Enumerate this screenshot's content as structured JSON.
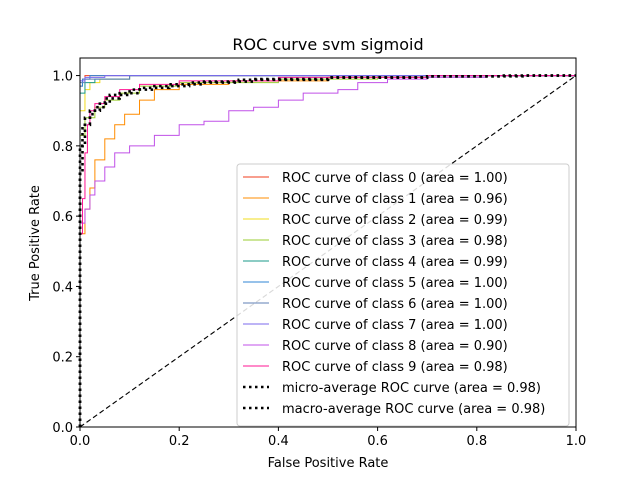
{
  "chart_data": {
    "type": "line",
    "title": "ROC curve svm sigmoid",
    "xlabel": "False Positive Rate",
    "ylabel": "True Positive Rate",
    "xlim": [
      0.0,
      1.0
    ],
    "ylim": [
      0.0,
      1.05
    ],
    "xticks": [
      "0.0",
      "0.2",
      "0.4",
      "0.6",
      "0.8",
      "1.0"
    ],
    "yticks": [
      "0.0",
      "0.2",
      "0.4",
      "0.6",
      "0.8",
      "1.0"
    ],
    "legend_position": "lower-right",
    "grid": false,
    "series": [
      {
        "name": "ROC curve of class 0 (area = 1.00)",
        "color": "#f03c1e",
        "dash": "solid",
        "points": [
          [
            0,
            0
          ],
          [
            0,
            0.9
          ],
          [
            0.005,
            0.97
          ],
          [
            0.01,
            0.99
          ],
          [
            0.02,
            1.0
          ],
          [
            1,
            1
          ]
        ]
      },
      {
        "name": "ROC curve of class 1 (area = 0.96)",
        "color": "#ff8c00",
        "dash": "solid",
        "points": [
          [
            0,
            0
          ],
          [
            0,
            0.42
          ],
          [
            0.01,
            0.55
          ],
          [
            0.02,
            0.62
          ],
          [
            0.03,
            0.68
          ],
          [
            0.05,
            0.76
          ],
          [
            0.07,
            0.82
          ],
          [
            0.09,
            0.86
          ],
          [
            0.12,
            0.89
          ],
          [
            0.15,
            0.93
          ],
          [
            0.2,
            0.96
          ],
          [
            0.3,
            0.975
          ],
          [
            0.5,
            0.985
          ],
          [
            0.7,
            0.995
          ],
          [
            1,
            1
          ]
        ]
      },
      {
        "name": "ROC curve of class 2 (area = 0.99)",
        "color": "#f2dc1e",
        "dash": "solid",
        "points": [
          [
            0,
            0
          ],
          [
            0,
            0.8
          ],
          [
            0.01,
            0.9
          ],
          [
            0.02,
            0.96
          ],
          [
            0.04,
            0.98
          ],
          [
            0.1,
            0.99
          ],
          [
            0.2,
            1.0
          ],
          [
            1,
            1
          ]
        ]
      },
      {
        "name": "ROC curve of class 3 (area = 0.98)",
        "color": "#9acd32",
        "dash": "solid",
        "points": [
          [
            0,
            0
          ],
          [
            0,
            0.72
          ],
          [
            0.01,
            0.83
          ],
          [
            0.03,
            0.88
          ],
          [
            0.05,
            0.91
          ],
          [
            0.08,
            0.93
          ],
          [
            0.12,
            0.95
          ],
          [
            0.2,
            0.97
          ],
          [
            0.4,
            0.98
          ],
          [
            0.6,
            0.99
          ],
          [
            1,
            1
          ]
        ]
      },
      {
        "name": "ROC curve of class 4 (area = 0.99)",
        "color": "#1a9a8a",
        "dash": "solid",
        "points": [
          [
            0,
            0
          ],
          [
            0,
            0.88
          ],
          [
            0.01,
            0.95
          ],
          [
            0.03,
            0.98
          ],
          [
            0.1,
            0.99
          ],
          [
            0.3,
            1.0
          ],
          [
            1,
            1
          ]
        ]
      },
      {
        "name": "ROC curve of class 5 (area = 1.00)",
        "color": "#2f86d6",
        "dash": "solid",
        "points": [
          [
            0,
            0
          ],
          [
            0,
            0.93
          ],
          [
            0.005,
            0.97
          ],
          [
            0.02,
            0.99
          ],
          [
            0.05,
            1.0
          ],
          [
            1,
            1
          ]
        ]
      },
      {
        "name": "ROC curve of class 6 (area = 1.00)",
        "color": "#5f7fb5",
        "dash": "solid",
        "points": [
          [
            0,
            0
          ],
          [
            0,
            0.95
          ],
          [
            0.01,
            0.98
          ],
          [
            0.1,
            0.99
          ],
          [
            0.2,
            1.0
          ],
          [
            1,
            1
          ]
        ]
      },
      {
        "name": "ROC curve of class 7 (area = 1.00)",
        "color": "#7b68ee",
        "dash": "solid",
        "points": [
          [
            0,
            0
          ],
          [
            0,
            0.96
          ],
          [
            0.01,
            0.985
          ],
          [
            0.05,
            0.995
          ],
          [
            0.2,
            1.0
          ],
          [
            1,
            1
          ]
        ]
      },
      {
        "name": "ROC curve of class 8 (area = 0.90)",
        "color": "#c050e8",
        "dash": "solid",
        "points": [
          [
            0,
            0
          ],
          [
            0,
            0.5
          ],
          [
            0.01,
            0.58
          ],
          [
            0.02,
            0.62
          ],
          [
            0.03,
            0.66
          ],
          [
            0.05,
            0.7
          ],
          [
            0.07,
            0.74
          ],
          [
            0.1,
            0.78
          ],
          [
            0.15,
            0.8
          ],
          [
            0.2,
            0.83
          ],
          [
            0.25,
            0.86
          ],
          [
            0.3,
            0.87
          ],
          [
            0.35,
            0.9
          ],
          [
            0.4,
            0.91
          ],
          [
            0.45,
            0.93
          ],
          [
            0.52,
            0.95
          ],
          [
            0.56,
            0.96
          ],
          [
            0.62,
            0.98
          ],
          [
            0.7,
            0.99
          ],
          [
            0.82,
            0.995
          ],
          [
            0.83,
            1.0
          ],
          [
            1,
            1
          ]
        ]
      },
      {
        "name": "ROC curve of class 9 (area = 0.98)",
        "color": "#ff1493",
        "dash": "solid",
        "points": [
          [
            0,
            0
          ],
          [
            0,
            0.35
          ],
          [
            0.005,
            0.55
          ],
          [
            0.01,
            0.65
          ],
          [
            0.015,
            0.78
          ],
          [
            0.02,
            0.86
          ],
          [
            0.03,
            0.9
          ],
          [
            0.05,
            0.92
          ],
          [
            0.08,
            0.94
          ],
          [
            0.12,
            0.96
          ],
          [
            0.2,
            0.975
          ],
          [
            0.4,
            0.985
          ],
          [
            0.7,
            0.995
          ],
          [
            1,
            1
          ]
        ]
      },
      {
        "name": "micro-average ROC curve (area = 0.98)",
        "color": "#000000",
        "dash": "dotted-bold",
        "points": [
          [
            0,
            0
          ],
          [
            0,
            0.6
          ],
          [
            0.005,
            0.72
          ],
          [
            0.01,
            0.8
          ],
          [
            0.02,
            0.86
          ],
          [
            0.03,
            0.89
          ],
          [
            0.05,
            0.91
          ],
          [
            0.08,
            0.935
          ],
          [
            0.12,
            0.95
          ],
          [
            0.18,
            0.965
          ],
          [
            0.25,
            0.975
          ],
          [
            0.35,
            0.983
          ],
          [
            0.5,
            0.99
          ],
          [
            0.7,
            0.995
          ],
          [
            0.85,
            0.998
          ],
          [
            1,
            1
          ]
        ]
      },
      {
        "name": "macro-average ROC curve (area = 0.98)",
        "color": "#000000",
        "dash": "dotted-bold",
        "points": [
          [
            0,
            0
          ],
          [
            0,
            0.7
          ],
          [
            0.005,
            0.8
          ],
          [
            0.01,
            0.85
          ],
          [
            0.02,
            0.88
          ],
          [
            0.04,
            0.9
          ],
          [
            0.06,
            0.92
          ],
          [
            0.1,
            0.945
          ],
          [
            0.15,
            0.96
          ],
          [
            0.22,
            0.97
          ],
          [
            0.32,
            0.98
          ],
          [
            0.5,
            0.988
          ],
          [
            0.7,
            0.994
          ],
          [
            0.9,
            0.998
          ],
          [
            1,
            1
          ]
        ]
      },
      {
        "name": "",
        "color": "#000000",
        "dash": "dashed",
        "points": [
          [
            0,
            0
          ],
          [
            1,
            1
          ]
        ]
      }
    ]
  }
}
